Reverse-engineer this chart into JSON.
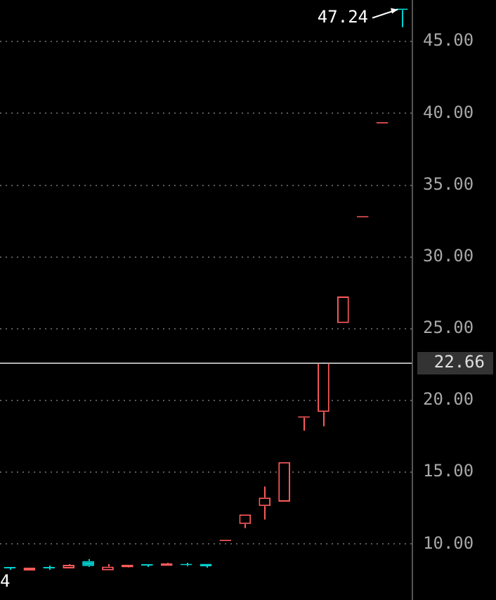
{
  "chart_data": {
    "type": "candlestick",
    "categories": [
      null,
      null,
      null,
      null,
      null,
      null,
      null,
      null,
      null,
      null,
      null,
      null,
      null,
      null,
      null,
      null,
      null,
      null,
      null,
      null,
      null
    ],
    "ohlc": [
      [
        8.3,
        8.4,
        8.2,
        8.3
      ],
      [
        8.15,
        8.35,
        8.15,
        8.35
      ],
      [
        8.32,
        8.5,
        8.2,
        8.3
      ],
      [
        8.3,
        8.6,
        8.3,
        8.55
      ],
      [
        8.82,
        8.95,
        8.4,
        8.46
      ],
      [
        8.17,
        8.6,
        8.17,
        8.43
      ],
      [
        8.37,
        8.56,
        8.35,
        8.56
      ],
      [
        8.52,
        8.6,
        8.4,
        8.5
      ],
      [
        8.47,
        8.7,
        8.47,
        8.66
      ],
      [
        8.54,
        8.7,
        8.45,
        8.52
      ],
      [
        8.62,
        8.62,
        8.35,
        8.45
      ],
      [
        10.2,
        10.2,
        10.2,
        10.2
      ],
      [
        11.4,
        12.06,
        11.1,
        12.06
      ],
      [
        12.65,
        14.0,
        11.7,
        13.24
      ],
      [
        12.95,
        15.7,
        12.95,
        15.7
      ],
      [
        18.8,
        18.8,
        17.9,
        18.8
      ],
      [
        19.2,
        22.66,
        18.2,
        22.64
      ],
      [
        25.4,
        27.25,
        25.4,
        27.25
      ],
      [
        32.75,
        32.75,
        32.75,
        32.75
      ],
      [
        39.3,
        39.3,
        39.3,
        39.3
      ],
      [
        47.24,
        47.24,
        46.0,
        47.2
      ]
    ],
    "colors": [
      "#00d0d0",
      "#ff5a5a",
      "#00d0d0",
      "#ff5a5a",
      "#00d0d0",
      "#ff5a5a",
      "#ff5a5a",
      "#00d0d0",
      "#ff5a5a",
      "#00d0d0",
      "#00d0d0",
      "#ff5a5a",
      "#ff5a5a",
      "#ff5a5a",
      "#ff5a5a",
      "#ff5a5a",
      "#ff5a5a",
      "#ff5a5a",
      "#ff5a5a",
      "#ff5a5a",
      "#00d0d0"
    ],
    "ylim": [
      6.1,
      47.9
    ],
    "yticks": [
      {
        "value": 10,
        "label": "10.00"
      },
      {
        "value": 15,
        "label": "15.00"
      },
      {
        "value": 20,
        "label": "20.00"
      },
      {
        "value": 25,
        "label": "25.00"
      },
      {
        "value": 30,
        "label": "30.00"
      },
      {
        "value": 35,
        "label": "35.00"
      },
      {
        "value": 40,
        "label": "40.00"
      },
      {
        "value": 45,
        "label": "45.00"
      }
    ],
    "grid": "y",
    "tick_labels": "y",
    "ref_lines": [
      {
        "axis": "y",
        "value": 22.66,
        "label": "22.66",
        "color": "#b0b0b0"
      }
    ],
    "annotations": [
      "47.24",
      "4"
    ]
  }
}
